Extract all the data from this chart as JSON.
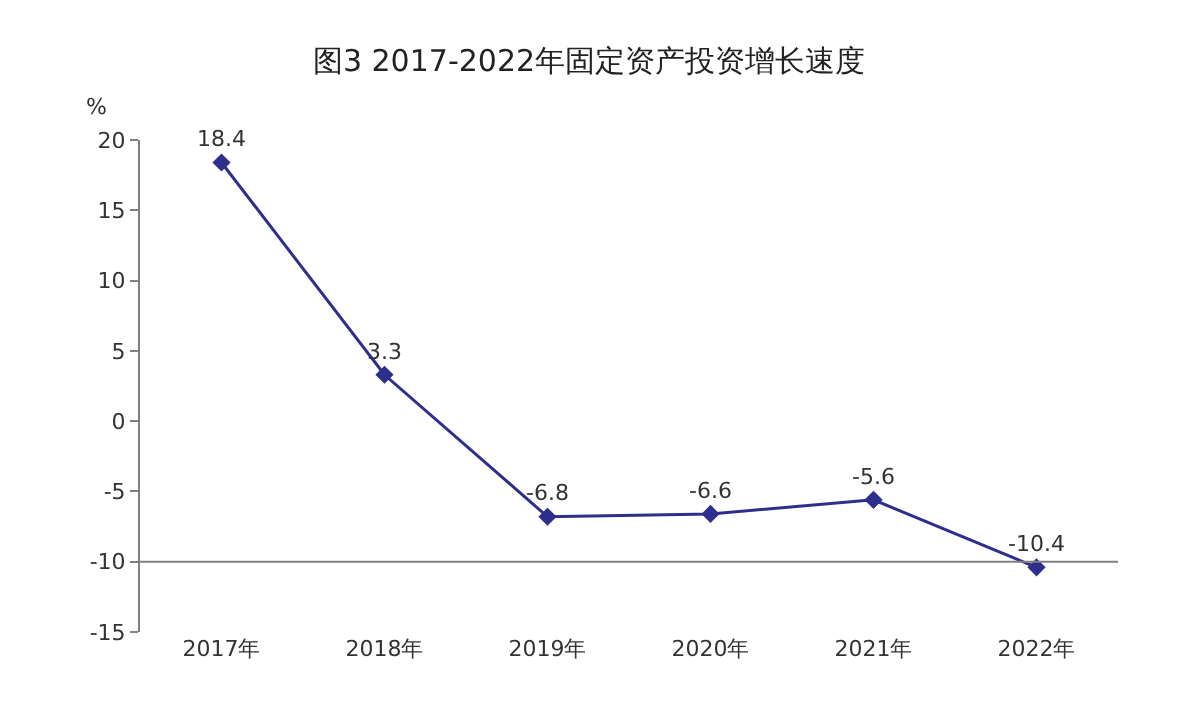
{
  "chart_data": {
    "type": "line",
    "title": "图3 2017-2022年固定资产投资增长速度",
    "ylabel": "%",
    "categories": [
      "2017年",
      "2018年",
      "2019年",
      "2020年",
      "2021年",
      "2022年"
    ],
    "series": [
      {
        "color": "#2e2e8c",
        "values": [
          18.4,
          3.3,
          -6.8,
          -6.6,
          -5.6,
          -10.4
        ]
      }
    ],
    "ylim": [
      -15,
      20
    ],
    "yticks": [
      -15,
      -10,
      -5,
      0,
      5,
      10,
      15,
      20
    ],
    "ref_lines": [
      {
        "axis": "y",
        "value": -10,
        "color": "#808080"
      }
    ],
    "data_labels": true,
    "marker": "diamond",
    "line_style": "solid"
  }
}
